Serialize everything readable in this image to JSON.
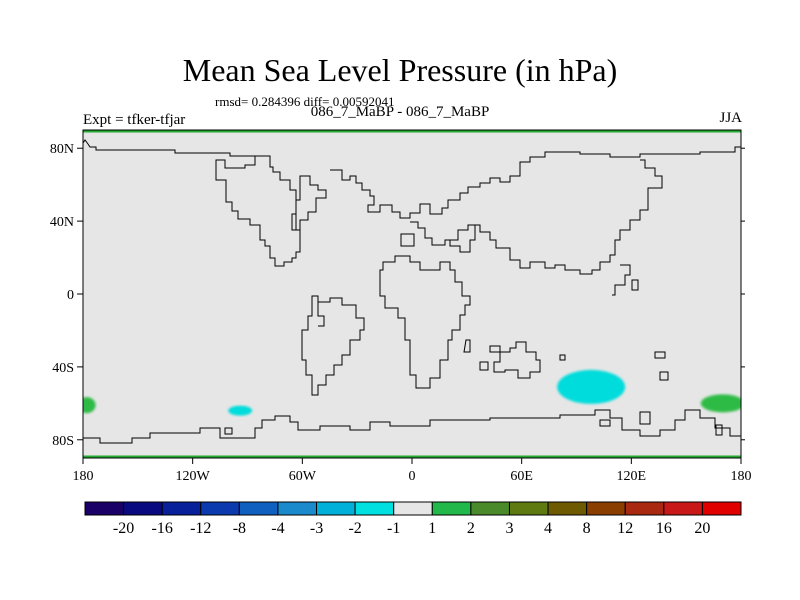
{
  "title": "Mean Sea Level Pressure (in hPa)",
  "stats": "rmsd= 0.284396 diff= 0.00592041",
  "subtitle": "086_7_MaBP - 086_7_MaBP",
  "experiment": "Expt = tfker-tfjar",
  "season": "JJA",
  "map": {
    "lon_ticks": [
      "180",
      "120W",
      "60W",
      "0",
      "60E",
      "120E",
      "180"
    ],
    "lat_ticks": [
      "80N",
      "40N",
      "0",
      "40S",
      "80S"
    ],
    "background_color": "#e6e6e6",
    "border_color": "#22aa33",
    "anomalies": [
      {
        "name": "south-indian-ocean-low",
        "color": "#00dcdc",
        "lon": 98,
        "lat": -51,
        "category": "-1 to -2"
      },
      {
        "name": "south-pacific-low",
        "color": "#00dcdc",
        "lon": -94,
        "lat": -64,
        "category": "-1 to -2"
      },
      {
        "name": "southwest-pacific-high",
        "color": "#2dbb44",
        "lon": 170,
        "lat": -60,
        "category": "1 to 2"
      },
      {
        "name": "date-line-high",
        "color": "#2dbb44",
        "lon": -178,
        "lat": -61,
        "category": "1 to 2"
      }
    ]
  },
  "colorbar": {
    "labels": [
      "-20",
      "-16",
      "-12",
      "-8",
      "-4",
      "-3",
      "-2",
      "-1",
      "1",
      "2",
      "3",
      "4",
      "8",
      "12",
      "16",
      "20"
    ],
    "colors": [
      "#1a0066",
      "#0a0a80",
      "#08209a",
      "#0a3aad",
      "#1060c0",
      "#1a8acc",
      "#00b0d8",
      "#00e0e0",
      "#e6e6e6",
      "#22b84a",
      "#4a8a2a",
      "#5e7a10",
      "#6e5a00",
      "#8a3e00",
      "#a82810",
      "#c81818",
      "#e00000"
    ]
  }
}
